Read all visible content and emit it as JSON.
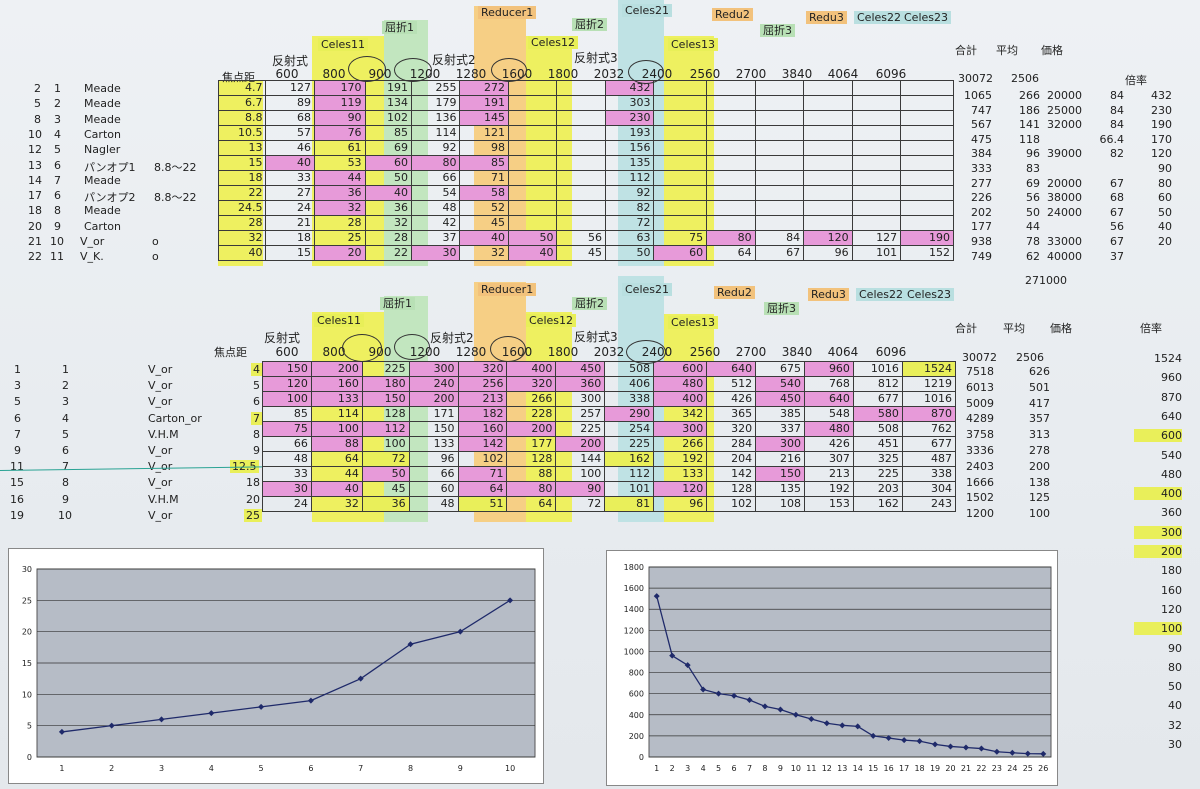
{
  "upper": {
    "group_labels": {
      "reducer1": "Reducer1",
      "kussetsu1": "屈折1",
      "celes11": "Celes11",
      "celes12": "Celes12",
      "kussetsu2": "屈折2",
      "celes21": "Celes21",
      "celes13": "Celes13",
      "redu2": "Redu2",
      "kussetsu3": "屈折3",
      "redu3": "Redu3",
      "celes22": "Celes22",
      "celes23": "Celes23"
    },
    "hansha1": "反射式",
    "hansha2": "反射式2",
    "hansha3": "反射式3",
    "focal_label": "焦点距",
    "columns": [
      "600",
      "800",
      "900",
      "1200",
      "1280",
      "1600",
      "1800",
      "2032",
      "2400",
      "2560",
      "2700",
      "3840",
      "4064",
      "6096"
    ],
    "totals_head": {
      "sum": "合計",
      "avg": "平均",
      "price": "価格",
      "mult": "倍率",
      "sum_val": "30072",
      "avg_val": "2506"
    },
    "rows": [
      {
        "id": "2",
        "n": "1",
        "name": "Meade",
        "f": "4.7",
        "v": [
          "127",
          "170",
          "191",
          "255",
          "272",
          "",
          "",
          "432",
          "",
          "",
          "",
          "",
          "",
          ""
        ],
        "r": [
          "1065",
          "266",
          "20000",
          "84",
          "432"
        ]
      },
      {
        "id": "5",
        "n": "2",
        "name": "Meade",
        "f": "6.7",
        "v": [
          "89",
          "119",
          "134",
          "179",
          "191",
          "",
          "",
          "303",
          "",
          "",
          "",
          "",
          "",
          ""
        ],
        "r": [
          "747",
          "186",
          "25000",
          "84",
          "230"
        ]
      },
      {
        "id": "8",
        "n": "3",
        "name": "Meade",
        "f": "8.8",
        "v": [
          "68",
          "90",
          "102",
          "136",
          "145",
          "",
          "",
          "230",
          "",
          "",
          "",
          "",
          "",
          ""
        ],
        "r": [
          "567",
          "141",
          "32000",
          "84",
          "190"
        ]
      },
      {
        "id": "10",
        "n": "4",
        "name": "Carton",
        "f": "10.5",
        "v": [
          "57",
          "76",
          "85",
          "114",
          "121",
          "",
          "",
          "193",
          "",
          "",
          "",
          "",
          "",
          ""
        ],
        "r": [
          "475",
          "118",
          "",
          "66.4",
          "170"
        ]
      },
      {
        "id": "12",
        "n": "5",
        "name": "Nagler",
        "f": "13",
        "v": [
          "46",
          "61",
          "69",
          "92",
          "98",
          "",
          "",
          "156",
          "",
          "",
          "",
          "",
          "",
          ""
        ],
        "r": [
          "384",
          "96",
          "39000",
          "82",
          "120"
        ]
      },
      {
        "id": "13",
        "n": "6",
        "name": "パンオプ1",
        "extra": "8.8～22",
        "f": "15",
        "v": [
          "40",
          "53",
          "60",
          "80",
          "85",
          "",
          "",
          "135",
          "",
          "",
          "",
          "",
          "",
          ""
        ],
        "r": [
          "333",
          "83",
          "",
          "",
          "90"
        ]
      },
      {
        "id": "14",
        "n": "7",
        "name": "Meade",
        "f": "18",
        "v": [
          "33",
          "44",
          "50",
          "66",
          "71",
          "",
          "",
          "112",
          "",
          "",
          "",
          "",
          "",
          ""
        ],
        "r": [
          "277",
          "69",
          "20000",
          "67",
          "80"
        ]
      },
      {
        "id": "17",
        "n": "6",
        "name": "パンオプ2",
        "extra": "8.8～22",
        "f": "22",
        "v": [
          "27",
          "36",
          "40",
          "54",
          "58",
          "",
          "",
          "92",
          "",
          "",
          "",
          "",
          "",
          ""
        ],
        "r": [
          "226",
          "56",
          "38000",
          "68",
          "60"
        ]
      },
      {
        "id": "18",
        "n": "8",
        "name": "Meade",
        "f": "24.5",
        "v": [
          "24",
          "32",
          "36",
          "48",
          "52",
          "",
          "",
          "82",
          "",
          "",
          "",
          "",
          "",
          ""
        ],
        "r": [
          "202",
          "50",
          "24000",
          "67",
          "50"
        ]
      },
      {
        "id": "20",
        "n": "9",
        "name": "Carton",
        "f": "28",
        "v": [
          "21",
          "28",
          "32",
          "42",
          "45",
          "",
          "",
          "72",
          "",
          "",
          "",
          "",
          "",
          ""
        ],
        "r": [
          "177",
          "44",
          "",
          "56",
          "40"
        ]
      },
      {
        "id": "21",
        "n": "10",
        "name": "V_or",
        "extra": "o",
        "f": "32",
        "v": [
          "18",
          "25",
          "28",
          "37",
          "40",
          "50",
          "56",
          "63",
          "75",
          "80",
          "84",
          "120",
          "127",
          "190"
        ],
        "r": [
          "938",
          "78",
          "33000",
          "67",
          "20"
        ]
      },
      {
        "id": "22",
        "n": "11",
        "name": "V_K.",
        "extra": "o",
        "f": "40",
        "v": [
          "15",
          "20",
          "22",
          "30",
          "32",
          "40",
          "45",
          "50",
          "60",
          "64",
          "67",
          "96",
          "101",
          "152"
        ],
        "r": [
          "749",
          "62",
          "40000",
          "37",
          ""
        ]
      }
    ],
    "grand_total": "271000"
  },
  "lower": {
    "rows": [
      {
        "id": "1",
        "n": "1",
        "name": "V_or",
        "f": "4",
        "v": [
          "150",
          "200",
          "225",
          "300",
          "320",
          "400",
          "450",
          "508",
          "600",
          "640",
          "675",
          "960",
          "1016",
          "1524"
        ],
        "r": [
          "7518",
          "626"
        ]
      },
      {
        "id": "3",
        "n": "2",
        "name": "V_or",
        "f": "5",
        "v": [
          "120",
          "160",
          "180",
          "240",
          "256",
          "320",
          "360",
          "406",
          "480",
          "512",
          "540",
          "768",
          "812",
          "1219"
        ],
        "r": [
          "6013",
          "501"
        ]
      },
      {
        "id": "5",
        "n": "3",
        "name": "V_or",
        "f": "6",
        "v": [
          "100",
          "133",
          "150",
          "200",
          "213",
          "266",
          "300",
          "338",
          "400",
          "426",
          "450",
          "640",
          "677",
          "1016"
        ],
        "r": [
          "5009",
          "417"
        ]
      },
      {
        "id": "6",
        "n": "4",
        "name": "Carton_or",
        "f": "7",
        "v": [
          "85",
          "114",
          "128",
          "171",
          "182",
          "228",
          "257",
          "290",
          "342",
          "365",
          "385",
          "548",
          "580",
          "870"
        ],
        "r": [
          "4289",
          "357"
        ]
      },
      {
        "id": "7",
        "n": "5",
        "name": "V.H.M",
        "f": "8",
        "v": [
          "75",
          "100",
          "112",
          "150",
          "160",
          "200",
          "225",
          "254",
          "300",
          "320",
          "337",
          "480",
          "508",
          "762"
        ],
        "r": [
          "3758",
          "313"
        ]
      },
      {
        "id": "9",
        "n": "6",
        "name": "V_or",
        "f": "9",
        "v": [
          "66",
          "88",
          "100",
          "133",
          "142",
          "177",
          "200",
          "225",
          "266",
          "284",
          "300",
          "426",
          "451",
          "677"
        ],
        "r": [
          "3336",
          "278"
        ]
      },
      {
        "id": "11",
        "n": "7",
        "name": "V_or",
        "f": "12.5",
        "v": [
          "48",
          "64",
          "72",
          "96",
          "102",
          "128",
          "144",
          "162",
          "192",
          "204",
          "216",
          "307",
          "325",
          "487"
        ],
        "r": [
          "2403",
          "200"
        ]
      },
      {
        "id": "15",
        "n": "8",
        "name": "V_or",
        "f": "18",
        "v": [
          "33",
          "44",
          "50",
          "66",
          "71",
          "88",
          "100",
          "112",
          "133",
          "142",
          "150",
          "213",
          "225",
          "338"
        ],
        "r": [
          "1666",
          "138"
        ]
      },
      {
        "id": "16",
        "n": "9",
        "name": "V.H.M",
        "f": "20",
        "v": [
          "30",
          "40",
          "45",
          "60",
          "64",
          "80",
          "90",
          "101",
          "120",
          "128",
          "135",
          "192",
          "203",
          "304"
        ],
        "r": [
          "1502",
          "125"
        ]
      },
      {
        "id": "19",
        "n": "10",
        "name": "V_or",
        "f": "25",
        "v": [
          "24",
          "32",
          "36",
          "48",
          "51",
          "64",
          "72",
          "81",
          "96",
          "102",
          "108",
          "153",
          "162",
          "243"
        ],
        "r": [
          "1200",
          "100"
        ]
      }
    ],
    "mult_list": [
      "1524",
      "960",
      "870",
      "640",
      "600",
      "540",
      "480",
      "400",
      "360",
      "300",
      "200",
      "180",
      "160",
      "120",
      "100",
      "90",
      "80",
      "50",
      "40",
      "32",
      "30"
    ]
  },
  "chart_data": [
    {
      "type": "line",
      "x": [
        1,
        2,
        3,
        4,
        5,
        6,
        7,
        8,
        9,
        10
      ],
      "y": [
        4,
        5,
        6,
        7,
        8,
        9,
        12.5,
        18,
        20,
        25
      ],
      "ylim": [
        0,
        30
      ],
      "yticks": [
        0,
        5,
        10,
        15,
        20,
        25,
        30
      ],
      "grid": true,
      "marker": "diamond"
    },
    {
      "type": "line",
      "x": [
        1,
        2,
        3,
        4,
        5,
        6,
        7,
        8,
        9,
        10,
        11,
        12,
        13,
        14,
        15,
        16,
        17,
        18,
        19,
        20,
        21,
        22,
        23,
        24,
        25,
        26
      ],
      "y": [
        1524,
        960,
        870,
        640,
        600,
        580,
        540,
        480,
        450,
        400,
        360,
        320,
        300,
        290,
        200,
        180,
        160,
        150,
        120,
        100,
        90,
        80,
        50,
        40,
        32,
        30
      ],
      "ylim": [
        0,
        1800
      ],
      "yticks": [
        0,
        200,
        400,
        600,
        800,
        1000,
        1200,
        1400,
        1600,
        1800
      ],
      "grid": true,
      "marker": "diamond"
    }
  ],
  "colors": {
    "pink": "#e79ad9",
    "yellow": "#e9ef5a",
    "green": "#c2e6bf",
    "orange": "#f6cf85",
    "cyan": "#bfe2e4",
    "chart_line": "#1f2a6a"
  }
}
